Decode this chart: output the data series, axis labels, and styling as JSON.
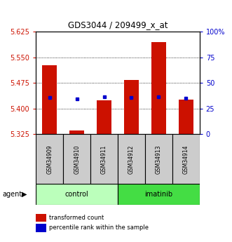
{
  "title": "GDS3044 / 209499_x_at",
  "samples": [
    "GSM34909",
    "GSM34910",
    "GSM34911",
    "GSM34912",
    "GSM34913",
    "GSM34914"
  ],
  "groups": [
    "control",
    "control",
    "control",
    "imatinib",
    "imatinib",
    "imatinib"
  ],
  "red_values": [
    5.527,
    5.337,
    5.425,
    5.483,
    5.593,
    5.427
  ],
  "blue_values": [
    5.432,
    5.428,
    5.434,
    5.433,
    5.434,
    5.43
  ],
  "y_min": 5.325,
  "y_max": 5.625,
  "y_ticks_red": [
    5.325,
    5.4,
    5.475,
    5.55,
    5.625
  ],
  "y_ticks_blue_vals": [
    0,
    25,
    50,
    75,
    100
  ],
  "y_ticks_blue_labels": [
    "0",
    "25",
    "50",
    "75",
    "100%"
  ],
  "bar_color": "#cc1100",
  "dot_color": "#0000cc",
  "control_color": "#bbffbb",
  "imatinib_color": "#44dd44",
  "legend_red": "transformed count",
  "legend_blue": "percentile rank within the sample",
  "bar_bottom": 5.325,
  "bar_width": 0.55,
  "gridlines": [
    5.4,
    5.475,
    5.55
  ]
}
